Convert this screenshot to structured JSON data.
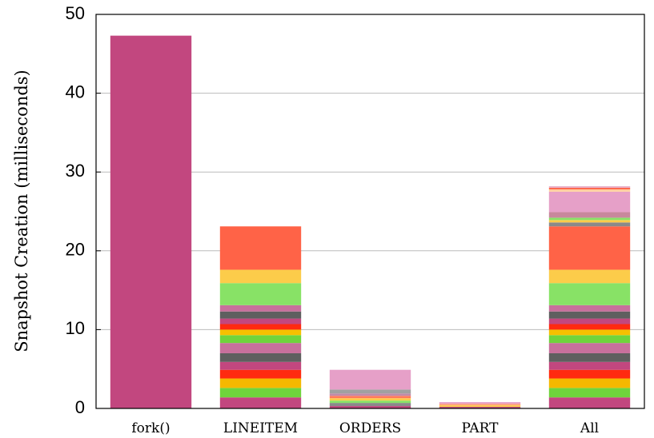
{
  "chart_data": {
    "type": "stacked_bar",
    "y_label": "Snapshot Creation (milliseconds)",
    "categories": [
      "fork()",
      "LINEITEM",
      "ORDERS",
      "PART",
      "All"
    ],
    "segments": [
      [
        47.3
      ],
      [
        1.4,
        1.2,
        1.2,
        1.1,
        1.0,
        1.1,
        1.3,
        1.0,
        0.7,
        0.7,
        0.7,
        0.9,
        0.8,
        2.8,
        1.7,
        5.5
      ],
      [
        0.3,
        0.4,
        0.3,
        0.3,
        0.3,
        0.3,
        0.5,
        2.5
      ],
      [
        0.2,
        0.2,
        0.2,
        0.2
      ],
      [
        1.4,
        1.2,
        1.2,
        1.1,
        1.0,
        1.1,
        1.3,
        1.0,
        0.7,
        0.7,
        0.7,
        0.9,
        0.8,
        2.8,
        1.7,
        5.5,
        0.5,
        0.3,
        0.3,
        0.7,
        2.6,
        0.3,
        0.2,
        0.2
      ]
    ],
    "segment_colors": [
      [
        "#c2477f"
      ],
      [
        "#c2477f",
        "#6fd43c",
        "#f5b800",
        "#ff2a10",
        "#c2477f",
        "#5f5f5f",
        "#c8709c",
        "#6fd43c",
        "#f5c000",
        "#ff2a10",
        "#c2477f",
        "#5f5f5f",
        "#c8709c",
        "#88e266",
        "#fccc4a",
        "#ff6347"
      ],
      [
        "#c2477f",
        "#8a8a8a",
        "#88e266",
        "#fccc4a",
        "#ff7a5a",
        "#c08aa8",
        "#a0a0a0",
        "#e6a0c8"
      ],
      [
        "#c2477f",
        "#fccc4a",
        "#ffa080",
        "#e6a0c8"
      ],
      [
        "#c2477f",
        "#6fd43c",
        "#f5b800",
        "#ff2a10",
        "#c2477f",
        "#5f5f5f",
        "#c8709c",
        "#6fd43c",
        "#f5c000",
        "#ff2a10",
        "#c2477f",
        "#5f5f5f",
        "#c8709c",
        "#88e266",
        "#fccc4a",
        "#ff6347",
        "#8a8a8a",
        "#fccc4a",
        "#88e266",
        "#c8889c",
        "#e6a0c8",
        "#ffd0a0",
        "#ff6347",
        "#e8b0c8"
      ]
    ],
    "ylim": [
      0,
      50
    ],
    "yticks": [
      0,
      10,
      20,
      30,
      40,
      50
    ],
    "grid": true
  }
}
